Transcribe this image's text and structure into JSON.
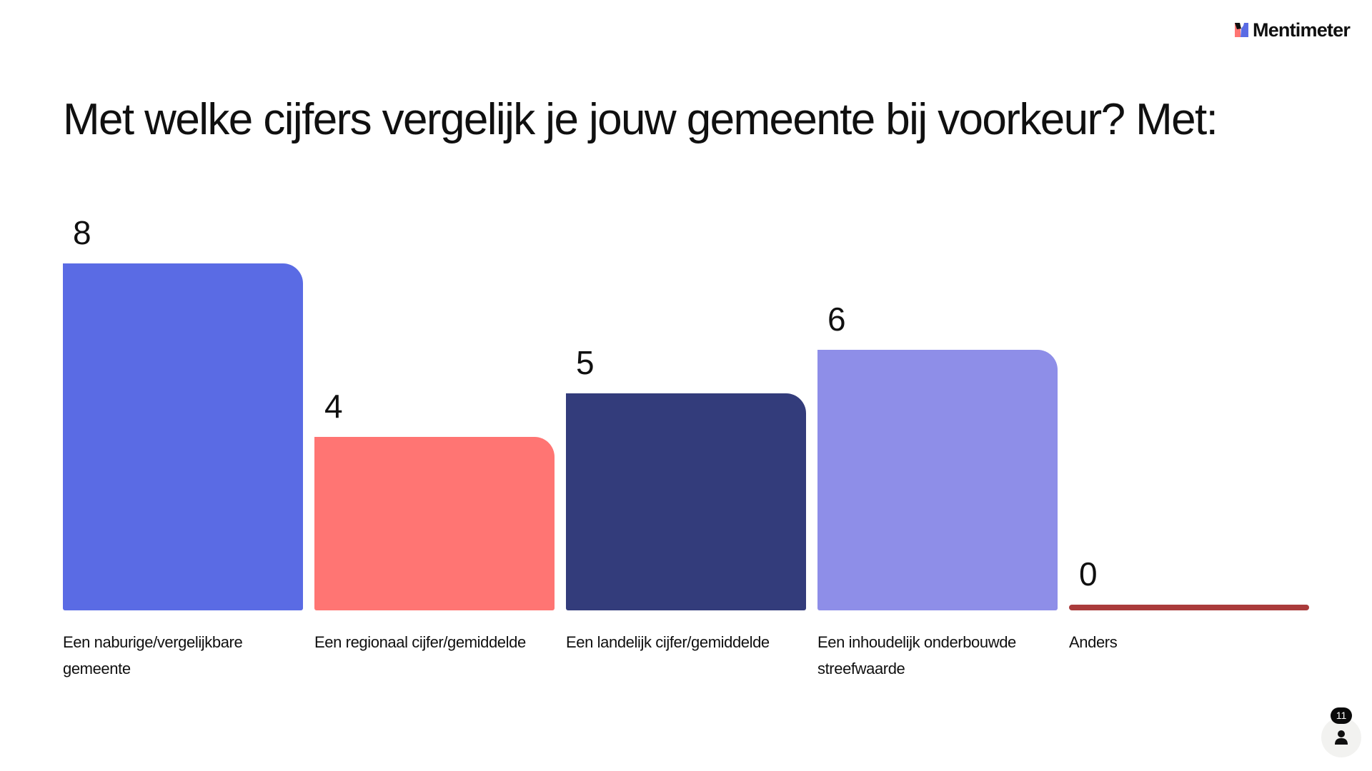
{
  "brand": {
    "name": "Mentimeter",
    "logo_icon": "mentimeter-logo-icon"
  },
  "slide": {
    "title": "Met welke cijfers vergelijk je jouw gemeente bij voorkeur? Met:"
  },
  "chart_data": {
    "type": "bar",
    "title": "Met welke cijfers vergelijk je jouw gemeente bij voorkeur? Met:",
    "categories": [
      "Een naburige/vergelijkbare gemeente",
      "Een regionaal cijfer/gemiddelde",
      "Een landelijk cijfer/gemiddelde",
      "Een inhoudelijk onderbouwde streefwaarde",
      "Anders"
    ],
    "values": [
      8,
      4,
      5,
      6,
      0
    ],
    "colors": [
      "#5a6be4",
      "#ff7573",
      "#333c7b",
      "#8e8ee8",
      "#aa3b3b"
    ],
    "xlabel": "",
    "ylabel": "",
    "ylim": [
      0,
      8
    ],
    "grid": false,
    "legend": "none",
    "data_labels": true
  },
  "bars": [
    {
      "label": "Een naburige/vergelijkbare gemeente",
      "value": "8",
      "color": "#5a6be4"
    },
    {
      "label": "Een regionaal cijfer/gemiddelde",
      "value": "4",
      "color": "#ff7573"
    },
    {
      "label": "Een landelijk cijfer/gemiddelde",
      "value": "5",
      "color": "#333c7b"
    },
    {
      "label": "Een inhoudelijk onderbouwde streefwaarde",
      "value": "6",
      "color": "#8e8ee8"
    },
    {
      "label": "Anders",
      "value": "0",
      "color": "#aa3b3b"
    }
  ],
  "responses": {
    "count": "11",
    "icon": "person-icon"
  }
}
